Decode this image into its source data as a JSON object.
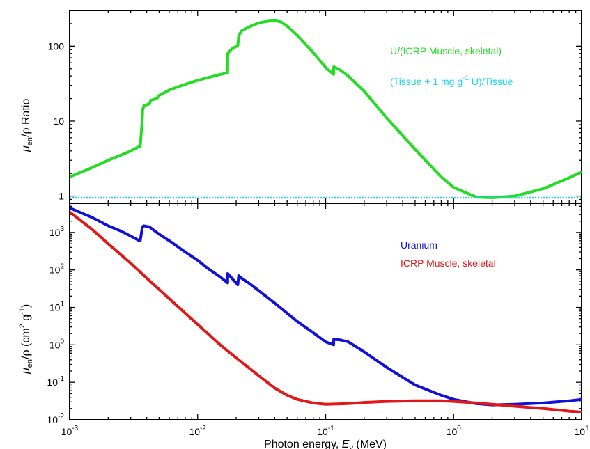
{
  "chart_data": [
    {
      "type": "line",
      "panel": "top",
      "ylabel_main": "μ",
      "ylabel_sub": "en",
      "ylabel_rest": "/ρ Ratio",
      "xscale": "log",
      "yscale": "log",
      "xlim": [
        0.001,
        10
      ],
      "ylim": [
        0.8,
        300
      ],
      "yticks": [
        1,
        10,
        100
      ],
      "ytick_labels": [
        "1",
        "10",
        "100"
      ],
      "legend_placement": "top-right",
      "series": [
        {
          "name": "U/(ICRP Muscle, skeletal)",
          "name_parts": [
            "U/(ICRP Muscle, skeletal)"
          ],
          "color": "#22dd22",
          "x": [
            0.001,
            0.0015,
            0.002,
            0.0025,
            0.003,
            0.0035,
            0.00356,
            0.0037,
            0.00372,
            0.0038,
            0.0042,
            0.0043,
            0.0048,
            0.005,
            0.006,
            0.008,
            0.01,
            0.012,
            0.015,
            0.01716,
            0.01717,
            0.0185,
            0.0206,
            0.0209,
            0.021,
            0.022,
            0.025,
            0.03,
            0.035,
            0.04,
            0.045,
            0.05,
            0.06,
            0.08,
            0.1,
            0.1155,
            0.1156,
            0.13,
            0.15,
            0.2,
            0.3,
            0.5,
            0.8,
            1,
            1.5,
            2,
            3,
            5,
            8,
            10
          ],
          "y": [
            1.8,
            2.4,
            3.0,
            3.5,
            4.0,
            4.6,
            4.6,
            11,
            14,
            16,
            17,
            19,
            20,
            22,
            26,
            31,
            35,
            38,
            42,
            44,
            80,
            92,
            102,
            135,
            140,
            160,
            180,
            205,
            215,
            220,
            210,
            185,
            140,
            82,
            52,
            42,
            53,
            48,
            40,
            25,
            11,
            4.2,
            1.8,
            1.3,
            0.97,
            0.95,
            1.0,
            1.25,
            1.75,
            2.1
          ]
        },
        {
          "name": "(Tissue + 1 mg g-1 U)/Tissue",
          "name_parts": [
            "(Tissue + 1 mg g",
            "-1",
            " U)/Tissue"
          ],
          "color": "#1ad4e8",
          "x": [
            0.001,
            10
          ],
          "y": [
            0.95,
            0.95
          ]
        }
      ]
    },
    {
      "type": "line",
      "panel": "bottom",
      "ylabel_main": "μ",
      "ylabel_sub": "en",
      "ylabel_rest": "/ρ (cm",
      "ylabel_sup1": "2",
      "ylabel_mid": " g",
      "ylabel_sup2": "-1",
      "ylabel_end": ")",
      "xlabel_main": "Photon energy, ",
      "xlabel_italic": "E",
      "xlabel_sub": "γ",
      "xlabel_end": " (MeV)",
      "xscale": "log",
      "yscale": "log",
      "xlim": [
        0.001,
        10
      ],
      "ylim": [
        0.01,
        6000
      ],
      "xticks": [
        0.001,
        0.01,
        0.1,
        1,
        10
      ],
      "xtick_labels": [
        {
          "base": "10",
          "exp": "-3"
        },
        {
          "base": "10",
          "exp": "-2"
        },
        {
          "base": "10",
          "exp": "-1"
        },
        {
          "base": "10",
          "exp": "0"
        },
        {
          "base": "10",
          "exp": "1"
        }
      ],
      "yticks": [
        0.01,
        0.1,
        1,
        10,
        100,
        1000
      ],
      "ytick_labels": [
        {
          "base": "10",
          "exp": "-2"
        },
        {
          "base": "10",
          "exp": "-1"
        },
        {
          "base": "10",
          "exp": "0"
        },
        {
          "base": "10",
          "exp": "1"
        },
        {
          "base": "10",
          "exp": "2"
        },
        {
          "base": "10",
          "exp": "3"
        }
      ],
      "legend_placement": "top-right",
      "series": [
        {
          "name": "Uranium",
          "color": "#1010d8",
          "x": [
            0.001,
            0.0015,
            0.002,
            0.0025,
            0.003,
            0.0035,
            0.00356,
            0.0037,
            0.0038,
            0.0042,
            0.005,
            0.006,
            0.008,
            0.01,
            0.012,
            0.015,
            0.01716,
            0.01717,
            0.0185,
            0.0206,
            0.0209,
            0.022,
            0.025,
            0.03,
            0.04,
            0.05,
            0.06,
            0.08,
            0.1,
            0.1155,
            0.1156,
            0.13,
            0.15,
            0.2,
            0.3,
            0.5,
            0.8,
            1,
            1.5,
            2,
            3,
            5,
            8,
            10
          ],
          "y": [
            4500,
            2500,
            1500,
            1100,
            800,
            600,
            600,
            1400,
            1500,
            1400,
            900,
            600,
            300,
            180,
            110,
            65,
            45,
            80,
            60,
            40,
            70,
            60,
            45,
            28,
            13,
            7,
            4.2,
            2.1,
            1.2,
            1.0,
            1.4,
            1.35,
            1.2,
            0.65,
            0.25,
            0.085,
            0.045,
            0.035,
            0.027,
            0.025,
            0.026,
            0.028,
            0.032,
            0.035
          ]
        },
        {
          "name": "ICRP Muscle, skeletal",
          "color": "#e01818",
          "x": [
            0.001,
            0.0015,
            0.002,
            0.003,
            0.004,
            0.005,
            0.006,
            0.008,
            0.01,
            0.015,
            0.02,
            0.03,
            0.04,
            0.05,
            0.06,
            0.08,
            0.1,
            0.15,
            0.2,
            0.3,
            0.5,
            0.8,
            1,
            1.5,
            2,
            3,
            5,
            8,
            10
          ],
          "y": [
            3500,
            1200,
            500,
            150,
            60,
            30,
            17,
            7,
            3.5,
            1,
            0.45,
            0.15,
            0.07,
            0.045,
            0.035,
            0.028,
            0.026,
            0.027,
            0.029,
            0.031,
            0.032,
            0.032,
            0.031,
            0.028,
            0.026,
            0.023,
            0.02,
            0.017,
            0.016
          ]
        }
      ]
    }
  ]
}
